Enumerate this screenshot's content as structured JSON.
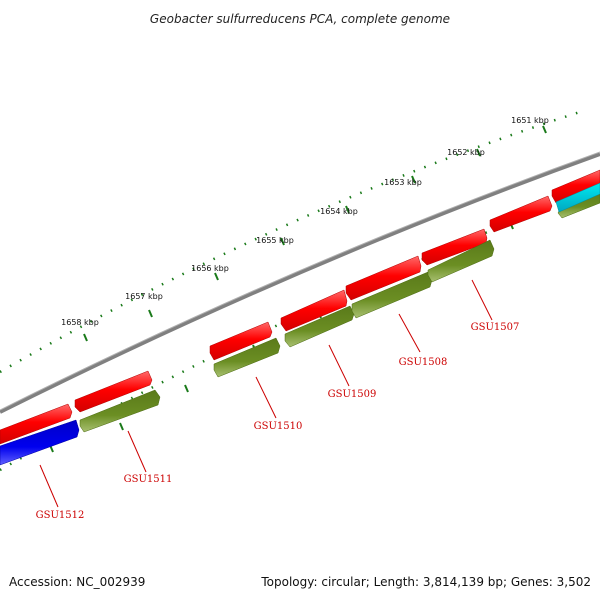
{
  "title": "Geobacter sulfurreducens PCA, complete genome",
  "footer": {
    "accession": "Accession: NC_002939",
    "stats": "Topology: circular; Length: 3,814,139 bp; Genes: 3,502"
  },
  "scale": {
    "labels": [
      "1651 kbp",
      "1652 kbp",
      "1653 kbp",
      "1654 kbp",
      "1655 kbp",
      "1656 kbp",
      "1657 kbp",
      "1658 kbp"
    ]
  },
  "genes": {
    "labels": [
      "GSU1507",
      "GSU1508",
      "GSU1509",
      "GSU1510",
      "GSU1511",
      "GSU1512"
    ]
  },
  "colors": {
    "backbone": "#808080",
    "ticks": "#1a7a1a",
    "cds_forward": "#ee0000",
    "cds_reverse": "#6b8e23",
    "other_blue": "#0000dd",
    "other_cyan": "#00c8d8",
    "label": "#cc0000"
  }
}
